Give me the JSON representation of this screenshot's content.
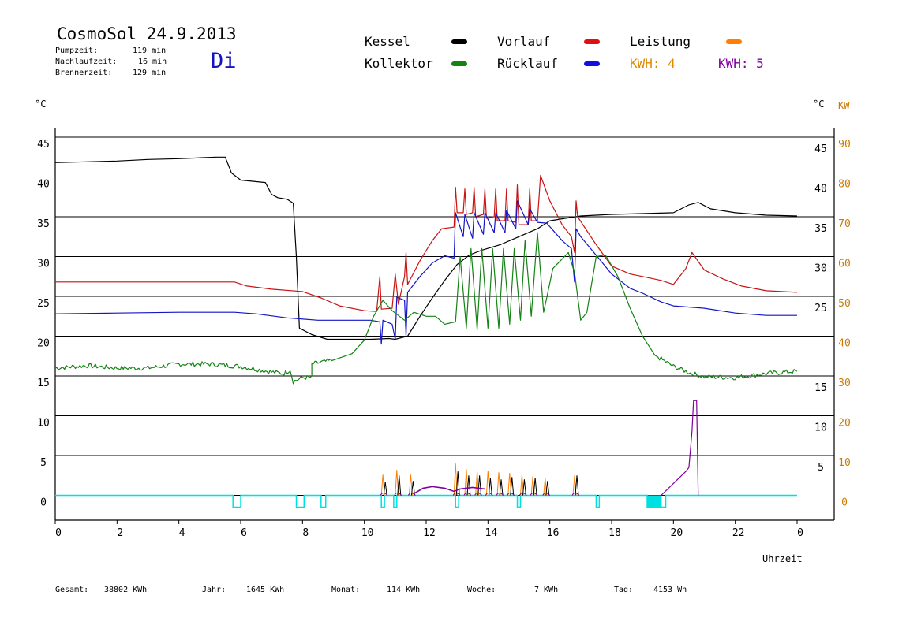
{
  "header": {
    "title": "CosmoSol 24.9.2013",
    "pump_label": "Pumpzeit:",
    "pump_value": "119 min",
    "nachlauf_label": "Nachlaufzeit:",
    "nachlauf_value": "16 min",
    "brenner_label": "Brennerzeit:",
    "brenner_value": "129 min",
    "weekday": "Di"
  },
  "legend": {
    "kessel": "Kessel",
    "kollektor": "Kollektor",
    "vorlauf": "Vorlauf",
    "ruecklauf": "Rücklauf",
    "leistung": "Leistung",
    "kwh4": "KWH: 4",
    "kwh5": "KWH: 5"
  },
  "colors": {
    "kessel": "#000000",
    "kollektor": "#148214",
    "vorlauf": "#c81414",
    "ruecklauf": "#1414c8",
    "leistung": "#ff8000",
    "kwh4": "#ff8000",
    "kwh5": "#8000a0",
    "pump": "#00e0e0",
    "axis_right2": "#cc7a00"
  },
  "footer": {
    "gesamt_label": "Gesamt:",
    "gesamt_value": "38802 KWh",
    "jahr_label": "Jahr:",
    "jahr_value": "1645 KWh",
    "monat_label": "Monat:",
    "monat_value": "114 KWh",
    "woche_label": "Woche:",
    "woche_value": "7 KWh",
    "tag_label": "Tag:",
    "tag_value": "4153 Wh"
  },
  "chart_data": {
    "type": "line",
    "xlabel": "Uhrzeit",
    "ylabel_left": "°C",
    "ylabel_right": "°C",
    "ylabel_right2": "KW",
    "xlim": [
      0,
      24
    ],
    "ylim": [
      0,
      45
    ],
    "x_ticks": [
      "0",
      "2",
      "4",
      "6",
      "8",
      "10",
      "12",
      "14",
      "16",
      "18",
      "20",
      "22",
      "0"
    ],
    "y_ticks_left": [
      "0",
      "5",
      "10",
      "15",
      "20",
      "25",
      "30",
      "35",
      "40",
      "45"
    ],
    "y_ticks_right": [
      "5",
      "10",
      "15",
      "25",
      "30",
      "35",
      "40",
      "45"
    ],
    "y_ticks_right2": [
      "0",
      "10",
      "20",
      "30",
      "40",
      "50",
      "60",
      "70",
      "80",
      "90"
    ],
    "grid": true,
    "series": [
      {
        "name": "Kessel",
        "color_key": "kessel",
        "points": [
          [
            0,
            41.8
          ],
          [
            1,
            41.9
          ],
          [
            2,
            42
          ],
          [
            3,
            42.2
          ],
          [
            4,
            42.3
          ],
          [
            5.2,
            42.5
          ],
          [
            5.5,
            42.5
          ],
          [
            5.7,
            40.5
          ],
          [
            6,
            39.6
          ],
          [
            6.8,
            39.3
          ],
          [
            7,
            37.8
          ],
          [
            7.2,
            37.4
          ],
          [
            7.5,
            37.2
          ],
          [
            7.7,
            36.7
          ],
          [
            7.8,
            30
          ],
          [
            7.9,
            21
          ],
          [
            8.3,
            20.2
          ],
          [
            8.8,
            19.6
          ],
          [
            9.5,
            19.6
          ],
          [
            10.2,
            19.6
          ],
          [
            10.8,
            19.7
          ],
          [
            11,
            19.6
          ],
          [
            11.4,
            20
          ],
          [
            11.8,
            22.5
          ],
          [
            12.2,
            24.8
          ],
          [
            12.6,
            27
          ],
          [
            13,
            29
          ],
          [
            13.4,
            30.2
          ],
          [
            13.8,
            30.8
          ],
          [
            14.4,
            31.5
          ],
          [
            15,
            32.5
          ],
          [
            15.6,
            33.5
          ],
          [
            16,
            34.5
          ],
          [
            16.5,
            34.8
          ],
          [
            17,
            35.1
          ],
          [
            18,
            35.3
          ],
          [
            19,
            35.4
          ],
          [
            20,
            35.5
          ],
          [
            20.5,
            36.5
          ],
          [
            20.8,
            36.8
          ],
          [
            21.2,
            36
          ],
          [
            22,
            35.5
          ],
          [
            23,
            35.2
          ],
          [
            24,
            35.1
          ]
        ]
      },
      {
        "name": "Vorlauf",
        "color_key": "vorlauf",
        "points": [
          [
            0,
            26.8
          ],
          [
            5.8,
            26.8
          ],
          [
            6.2,
            26.3
          ],
          [
            7,
            25.9
          ],
          [
            8,
            25.6
          ],
          [
            8.6,
            24.8
          ],
          [
            9.2,
            23.8
          ],
          [
            10,
            23.2
          ],
          [
            10.4,
            23.1
          ],
          [
            10.5,
            27.5
          ],
          [
            10.55,
            23.4
          ],
          [
            10.9,
            23.5
          ],
          [
            11,
            27.8
          ],
          [
            11.1,
            24
          ],
          [
            11.3,
            27.5
          ],
          [
            11.35,
            30.5
          ],
          [
            11.4,
            26.5
          ],
          [
            11.8,
            29.5
          ],
          [
            12.2,
            32
          ],
          [
            12.5,
            33.5
          ],
          [
            12.9,
            33.7
          ],
          [
            12.95,
            38.7
          ],
          [
            13,
            35.5
          ],
          [
            13.2,
            35.5
          ],
          [
            13.25,
            38.5
          ],
          [
            13.3,
            35.3
          ],
          [
            13.5,
            35.5
          ],
          [
            13.55,
            38.7
          ],
          [
            13.6,
            35
          ],
          [
            13.85,
            35.3
          ],
          [
            13.9,
            38.5
          ],
          [
            13.95,
            34.8
          ],
          [
            14.2,
            35
          ],
          [
            14.25,
            38.5
          ],
          [
            14.3,
            34.5
          ],
          [
            14.55,
            34.5
          ],
          [
            14.6,
            38.5
          ],
          [
            14.65,
            34.5
          ],
          [
            14.9,
            34.3
          ],
          [
            14.95,
            39
          ],
          [
            15,
            34
          ],
          [
            15.3,
            34
          ],
          [
            15.35,
            38.5
          ],
          [
            15.4,
            34.5
          ],
          [
            15.6,
            34.5
          ],
          [
            15.7,
            40.2
          ],
          [
            16,
            37
          ],
          [
            16.4,
            34
          ],
          [
            16.7,
            32.5
          ],
          [
            16.8,
            30.5
          ],
          [
            16.85,
            37
          ],
          [
            16.9,
            35
          ],
          [
            17.5,
            31.5
          ],
          [
            18,
            28.8
          ],
          [
            18.6,
            27.8
          ],
          [
            19,
            27.5
          ],
          [
            19.6,
            27
          ],
          [
            20,
            26.5
          ],
          [
            20.4,
            28.5
          ],
          [
            20.6,
            30.5
          ],
          [
            21,
            28.3
          ],
          [
            21.6,
            27.2
          ],
          [
            22.2,
            26.3
          ],
          [
            23,
            25.7
          ],
          [
            24,
            25.5
          ]
        ]
      },
      {
        "name": "Rücklauf",
        "color_key": "ruecklauf",
        "points": [
          [
            0,
            22.8
          ],
          [
            2,
            22.9
          ],
          [
            4,
            23
          ],
          [
            5.8,
            23
          ],
          [
            6.5,
            22.8
          ],
          [
            7.5,
            22.3
          ],
          [
            8.5,
            22
          ],
          [
            10.2,
            22
          ],
          [
            10.5,
            21.8
          ],
          [
            10.55,
            19
          ],
          [
            10.6,
            22
          ],
          [
            10.9,
            21.5
          ],
          [
            11,
            19.6
          ],
          [
            11.05,
            24.9
          ],
          [
            11.3,
            24.5
          ],
          [
            11.35,
            20
          ],
          [
            11.4,
            25.5
          ],
          [
            11.8,
            27.5
          ],
          [
            12.2,
            29.2
          ],
          [
            12.6,
            30.1
          ],
          [
            12.9,
            29.8
          ],
          [
            12.95,
            35.5
          ],
          [
            13.2,
            32.5
          ],
          [
            13.25,
            35.3
          ],
          [
            13.5,
            32.3
          ],
          [
            13.55,
            35.5
          ],
          [
            13.85,
            32.8
          ],
          [
            13.9,
            35.5
          ],
          [
            14.2,
            33
          ],
          [
            14.25,
            35.5
          ],
          [
            14.55,
            33
          ],
          [
            14.6,
            35.8
          ],
          [
            14.9,
            33.5
          ],
          [
            14.95,
            37
          ],
          [
            15.3,
            34
          ],
          [
            15.35,
            36
          ],
          [
            15.6,
            34.3
          ],
          [
            15.9,
            34.2
          ],
          [
            16.4,
            32
          ],
          [
            16.7,
            31
          ],
          [
            16.8,
            26.8
          ],
          [
            16.85,
            33.5
          ],
          [
            17,
            32.5
          ],
          [
            17.6,
            29.7
          ],
          [
            18,
            27.8
          ],
          [
            18.6,
            26
          ],
          [
            19,
            25.4
          ],
          [
            19.6,
            24.3
          ],
          [
            20,
            23.8
          ],
          [
            21,
            23.5
          ],
          [
            22,
            22.9
          ],
          [
            23,
            22.6
          ],
          [
            24,
            22.6
          ]
        ]
      },
      {
        "name": "Kollektor",
        "color_key": "kollektor",
        "points": [
          [
            0,
            16
          ],
          [
            1,
            16.3
          ],
          [
            2,
            16
          ],
          [
            3,
            16
          ],
          [
            4,
            16.5
          ],
          [
            5,
            16.5
          ],
          [
            6,
            16.2
          ],
          [
            7,
            15.5
          ],
          [
            7.4,
            15.3
          ],
          [
            7.6,
            15.8
          ],
          [
            7.7,
            14.3
          ],
          [
            8,
            14.8
          ],
          [
            8.3,
            14.8
          ],
          [
            8.3,
            16.5
          ],
          [
            9,
            17
          ],
          [
            9.6,
            17.8
          ],
          [
            10,
            19.5
          ],
          [
            10.3,
            22.5
          ],
          [
            10.6,
            24.5
          ],
          [
            10.9,
            23.2
          ],
          [
            11.3,
            22
          ],
          [
            11.6,
            23
          ],
          [
            12,
            22.5
          ],
          [
            12.3,
            22.5
          ],
          [
            12.6,
            21.5
          ],
          [
            12.95,
            21.8
          ],
          [
            13.1,
            30
          ],
          [
            13.3,
            21
          ],
          [
            13.45,
            31
          ],
          [
            13.65,
            20.8
          ],
          [
            13.8,
            31
          ],
          [
            14,
            21
          ],
          [
            14.15,
            31
          ],
          [
            14.35,
            21
          ],
          [
            14.5,
            31
          ],
          [
            14.7,
            21.5
          ],
          [
            14.85,
            31
          ],
          [
            15.05,
            22
          ],
          [
            15.2,
            32
          ],
          [
            15.4,
            22.5
          ],
          [
            15.6,
            33
          ],
          [
            15.8,
            23
          ],
          [
            16.1,
            28.5
          ],
          [
            16.6,
            30.5
          ],
          [
            16.8,
            28
          ],
          [
            17,
            22
          ],
          [
            17.2,
            23
          ],
          [
            17.5,
            30
          ],
          [
            17.8,
            30.2
          ],
          [
            18.2,
            27.5
          ],
          [
            18.6,
            23.5
          ],
          [
            19,
            20
          ],
          [
            19.4,
            17.6
          ],
          [
            20,
            16.2
          ],
          [
            20.6,
            15.3
          ],
          [
            21,
            14.9
          ],
          [
            22,
            14.8
          ],
          [
            23,
            15.3
          ],
          [
            24,
            15.6
          ]
        ]
      },
      {
        "name": "KWH: 5",
        "color_key": "kwh5",
        "points": [
          [
            19.6,
            0
          ],
          [
            20,
            1.5
          ],
          [
            20.4,
            3
          ],
          [
            20.5,
            3.5
          ],
          [
            20.6,
            8
          ],
          [
            20.65,
            11.9
          ],
          [
            20.75,
            11.9
          ],
          [
            20.8,
            0
          ]
        ]
      }
    ],
    "spikes": [
      {
        "x": 10.6,
        "black": 1.7,
        "orange": 2.6
      },
      {
        "x": 11.05,
        "black": 2.5,
        "orange": 3.2
      },
      {
        "x": 11.5,
        "black": 1.8,
        "orange": 2.6
      },
      {
        "x": 12.95,
        "black": 3.0,
        "orange": 4.0
      },
      {
        "x": 13.3,
        "black": 2.5,
        "orange": 3.3
      },
      {
        "x": 13.65,
        "black": 2.5,
        "orange": 3.0
      },
      {
        "x": 14.0,
        "black": 2.2,
        "orange": 3.1
      },
      {
        "x": 14.35,
        "black": 2.0,
        "orange": 2.9
      },
      {
        "x": 14.7,
        "black": 2.3,
        "orange": 2.8
      },
      {
        "x": 15.1,
        "black": 2.0,
        "orange": 2.6
      },
      {
        "x": 15.45,
        "black": 2.2,
        "orange": 2.4
      },
      {
        "x": 15.85,
        "black": 1.8,
        "orange": 2.2
      },
      {
        "x": 16.8,
        "black": 2.5,
        "orange": 2.5
      }
    ],
    "leistung_hump": [
      [
        11.6,
        0.2
      ],
      [
        11.9,
        0.9
      ],
      [
        12.2,
        1.1
      ],
      [
        12.6,
        0.9
      ],
      [
        12.9,
        0.5
      ],
      [
        13.1,
        0.8
      ],
      [
        13.5,
        1.0
      ],
      [
        13.9,
        0.8
      ]
    ],
    "pump_pulses": [
      [
        5.75,
        6.0
      ],
      [
        7.8,
        8.05
      ],
      [
        8.6,
        8.75
      ],
      [
        10.55,
        10.65
      ],
      [
        10.95,
        11.05
      ],
      [
        12.95,
        13.05
      ],
      [
        14.95,
        15.05
      ],
      [
        17.5,
        17.6
      ],
      [
        19.15,
        19.6
      ],
      [
        19.6,
        19.75
      ]
    ]
  }
}
